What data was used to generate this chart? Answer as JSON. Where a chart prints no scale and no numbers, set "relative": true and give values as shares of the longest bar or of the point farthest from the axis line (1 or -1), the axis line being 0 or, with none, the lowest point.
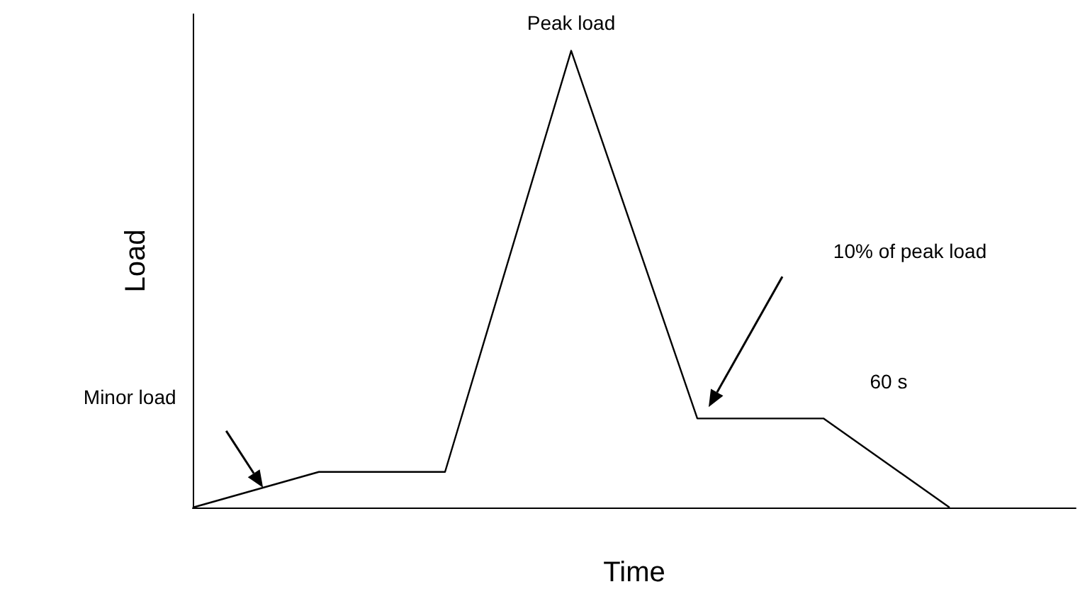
{
  "chart_data": {
    "type": "line",
    "relative": true,
    "xlabel": "Time",
    "ylabel": "Load",
    "categories": [
      null,
      null,
      null,
      null,
      null,
      null,
      null,
      null
    ],
    "values": [
      0,
      0.078,
      0.078,
      1,
      0.195,
      0.195,
      0,
      null
    ],
    "color": "#000000",
    "marker": "none",
    "line_style": "solid",
    "annotations": [
      "Minor load",
      "Peak load",
      "10% of peak load",
      "60 s"
    ]
  }
}
